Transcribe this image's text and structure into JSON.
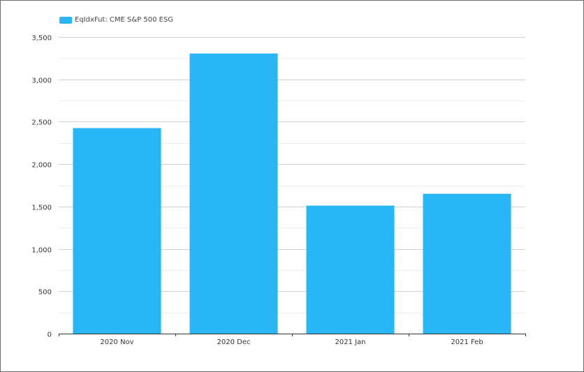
{
  "colors": {
    "bar": "#29b6f6",
    "grid_major": "#cfcfcf",
    "grid_minor": "#ececec",
    "axis": "#333333"
  },
  "chart_data": {
    "type": "bar",
    "categories": [
      "2020 Nov",
      "2020 Dec",
      "2021 Jan",
      "2021 Feb"
    ],
    "series": [
      {
        "name": "EqIdxFut: CME S&P 500 ESG",
        "values": [
          2425,
          3305,
          1510,
          1650
        ]
      }
    ],
    "ylim": [
      0,
      3500
    ],
    "yticks": [
      0,
      500,
      1000,
      1500,
      2000,
      2500,
      3000,
      3500
    ],
    "ytick_labels": [
      "0",
      "500",
      "1,000",
      "1,500",
      "2,000",
      "2,500",
      "3,000",
      "3,500"
    ],
    "grid": true,
    "legend": "top-left"
  }
}
